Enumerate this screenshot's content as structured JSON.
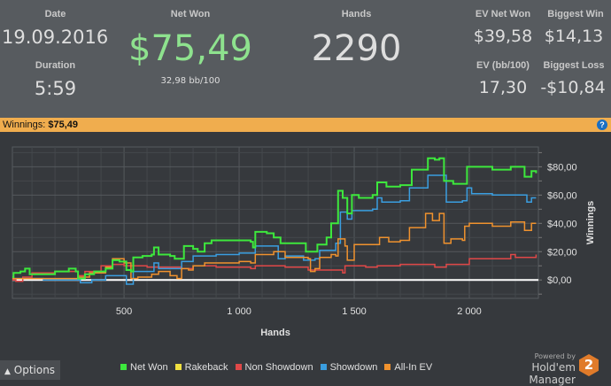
{
  "stats": {
    "date_label": "Date",
    "date": "19.09.2016",
    "duration_label": "Duration",
    "duration": "5:59",
    "net_won_label": "Net Won",
    "net_won": "$75,49",
    "bb100": "32,98 bb/100",
    "hands_label": "Hands",
    "hands": "2290",
    "ev_net_won_label": "EV Net Won",
    "ev_net_won": "$39,58",
    "biggest_win_label": "Biggest Win",
    "biggest_win": "$14,13",
    "ev_bb_label": "EV (bb/100)",
    "ev_bb": "17,30",
    "biggest_loss_label": "Biggest Loss",
    "biggest_loss": "-$10,84"
  },
  "bar": {
    "text": "Winnings: ",
    "value": "$75,49",
    "help": "?"
  },
  "footer": {
    "options": "Options",
    "powered": "Powered by",
    "brand": "Hold'em Manager",
    "logo": "2"
  },
  "colors": {
    "net_won": "#3de83d",
    "rakeback": "#f0e040",
    "non_showdown": "#e04848",
    "showdown": "#3a9ee0",
    "allin_ev": "#f0922e",
    "accent": "#f0ad4e"
  },
  "chart_data": {
    "type": "line",
    "xlabel": "Hands",
    "ylabel": "Winnings",
    "xlim": [
      15,
      2300
    ],
    "ylim": [
      -13,
      94
    ],
    "xticks": [
      {
        "v": 500,
        "label": "500"
      },
      {
        "v": 1000,
        "label": "1 000"
      },
      {
        "v": 1500,
        "label": "1 500"
      },
      {
        "v": 2000,
        "label": "2 000"
      }
    ],
    "yticks": [
      {
        "v": 0,
        "label": "$0,00"
      },
      {
        "v": 20,
        "label": "$20,00"
      },
      {
        "v": 40,
        "label": "$40,00"
      },
      {
        "v": 60,
        "label": "$60,00"
      },
      {
        "v": 80,
        "label": "$80,00"
      }
    ],
    "grid": true,
    "legend": "bottom",
    "series": [
      {
        "name": "Net Won",
        "color": "#3de83d",
        "points": [
          [
            15,
            2
          ],
          [
            20,
            5
          ],
          [
            50,
            6
          ],
          [
            70,
            8
          ],
          [
            90,
            4
          ],
          [
            130,
            4
          ],
          [
            200,
            6
          ],
          [
            260,
            8
          ],
          [
            290,
            6
          ],
          [
            300,
            1
          ],
          [
            330,
            4
          ],
          [
            370,
            6
          ],
          [
            420,
            8
          ],
          [
            450,
            14
          ],
          [
            480,
            13
          ],
          [
            510,
            7
          ],
          [
            530,
            6
          ],
          [
            540,
            16
          ],
          [
            580,
            17
          ],
          [
            620,
            18
          ],
          [
            630,
            23
          ],
          [
            650,
            18
          ],
          [
            700,
            17
          ],
          [
            720,
            15
          ],
          [
            750,
            15
          ],
          [
            760,
            24
          ],
          [
            800,
            22
          ],
          [
            820,
            20
          ],
          [
            850,
            26
          ],
          [
            880,
            28
          ],
          [
            1000,
            28
          ],
          [
            1050,
            27
          ],
          [
            1060,
            23
          ],
          [
            1070,
            34
          ],
          [
            1120,
            33
          ],
          [
            1150,
            30
          ],
          [
            1180,
            26
          ],
          [
            1240,
            26
          ],
          [
            1290,
            20
          ],
          [
            1330,
            20
          ],
          [
            1340,
            25
          ],
          [
            1380,
            30
          ],
          [
            1400,
            40
          ],
          [
            1420,
            40
          ],
          [
            1430,
            63
          ],
          [
            1450,
            58
          ],
          [
            1470,
            47
          ],
          [
            1490,
            60
          ],
          [
            1520,
            58
          ],
          [
            1580,
            60
          ],
          [
            1600,
            69
          ],
          [
            1640,
            66
          ],
          [
            1700,
            67
          ],
          [
            1750,
            78
          ],
          [
            1810,
            78
          ],
          [
            1820,
            86
          ],
          [
            1850,
            85
          ],
          [
            1870,
            86
          ],
          [
            1890,
            70
          ],
          [
            1930,
            68
          ],
          [
            1990,
            80
          ],
          [
            2100,
            78
          ],
          [
            2180,
            80
          ],
          [
            2240,
            73
          ],
          [
            2270,
            77
          ],
          [
            2290,
            75.5
          ]
        ]
      },
      {
        "name": "Rakeback",
        "color": "#f0e040",
        "points": []
      },
      {
        "name": "Non Showdown",
        "color": "#e04848",
        "points": [
          [
            15,
            0
          ],
          [
            30,
            -1
          ],
          [
            60,
            2
          ],
          [
            100,
            5
          ],
          [
            200,
            6
          ],
          [
            300,
            3
          ],
          [
            330,
            6
          ],
          [
            400,
            10
          ],
          [
            450,
            11
          ],
          [
            500,
            10
          ],
          [
            600,
            9
          ],
          [
            700,
            9
          ],
          [
            750,
            8
          ],
          [
            800,
            10
          ],
          [
            900,
            9
          ],
          [
            1000,
            9
          ],
          [
            1050,
            8
          ],
          [
            1070,
            10
          ],
          [
            1200,
            9
          ],
          [
            1300,
            7
          ],
          [
            1400,
            7
          ],
          [
            1450,
            5
          ],
          [
            1460,
            10
          ],
          [
            1500,
            10
          ],
          [
            1550,
            9
          ],
          [
            1600,
            10
          ],
          [
            1700,
            11
          ],
          [
            1800,
            11
          ],
          [
            1850,
            9
          ],
          [
            1900,
            11
          ],
          [
            2000,
            15
          ],
          [
            2100,
            15
          ],
          [
            2180,
            18
          ],
          [
            2200,
            16
          ],
          [
            2250,
            16
          ],
          [
            2290,
            18
          ]
        ]
      },
      {
        "name": "Showdown",
        "color": "#3a9ee0",
        "points": [
          [
            15,
            1
          ],
          [
            80,
            1
          ],
          [
            150,
            0
          ],
          [
            300,
            0
          ],
          [
            310,
            -2
          ],
          [
            350,
            -2
          ],
          [
            360,
            0
          ],
          [
            400,
            0
          ],
          [
            420,
            3
          ],
          [
            500,
            3
          ],
          [
            510,
            -3
          ],
          [
            530,
            -3
          ],
          [
            540,
            6
          ],
          [
            620,
            6
          ],
          [
            630,
            12
          ],
          [
            650,
            8
          ],
          [
            700,
            8
          ],
          [
            750,
            13
          ],
          [
            800,
            17
          ],
          [
            900,
            18
          ],
          [
            1000,
            19
          ],
          [
            1070,
            24
          ],
          [
            1150,
            24
          ],
          [
            1170,
            15
          ],
          [
            1200,
            17
          ],
          [
            1280,
            14
          ],
          [
            1330,
            15
          ],
          [
            1350,
            21
          ],
          [
            1420,
            26
          ],
          [
            1440,
            48
          ],
          [
            1470,
            43
          ],
          [
            1490,
            49
          ],
          [
            1580,
            50
          ],
          [
            1600,
            58
          ],
          [
            1620,
            55
          ],
          [
            1700,
            56
          ],
          [
            1740,
            65
          ],
          [
            1800,
            65
          ],
          [
            1820,
            74
          ],
          [
            1880,
            74
          ],
          [
            1900,
            55
          ],
          [
            1970,
            56
          ],
          [
            1990,
            65
          ],
          [
            2010,
            61
          ],
          [
            2100,
            60
          ],
          [
            2240,
            60
          ],
          [
            2250,
            55
          ],
          [
            2270,
            58
          ],
          [
            2290,
            58
          ]
        ]
      },
      {
        "name": "All-In EV",
        "color": "#f0922e",
        "points": [
          [
            15,
            1
          ],
          [
            300,
            2
          ],
          [
            350,
            5
          ],
          [
            420,
            9
          ],
          [
            450,
            15
          ],
          [
            500,
            12
          ],
          [
            530,
            1
          ],
          [
            560,
            2
          ],
          [
            620,
            4
          ],
          [
            650,
            6
          ],
          [
            700,
            3
          ],
          [
            730,
            1
          ],
          [
            750,
            8
          ],
          [
            780,
            7
          ],
          [
            800,
            10
          ],
          [
            850,
            12
          ],
          [
            1000,
            13
          ],
          [
            1050,
            12
          ],
          [
            1070,
            18
          ],
          [
            1150,
            20
          ],
          [
            1200,
            16
          ],
          [
            1300,
            15
          ],
          [
            1310,
            6
          ],
          [
            1330,
            8
          ],
          [
            1350,
            16
          ],
          [
            1400,
            18
          ],
          [
            1420,
            17
          ],
          [
            1430,
            29
          ],
          [
            1460,
            24
          ],
          [
            1470,
            14
          ],
          [
            1500,
            25
          ],
          [
            1600,
            25
          ],
          [
            1610,
            30
          ],
          [
            1650,
            27
          ],
          [
            1700,
            28
          ],
          [
            1740,
            37
          ],
          [
            1800,
            37
          ],
          [
            1810,
            47
          ],
          [
            1840,
            42
          ],
          [
            1870,
            47
          ],
          [
            1890,
            26
          ],
          [
            1920,
            29
          ],
          [
            1970,
            28
          ],
          [
            1980,
            38
          ],
          [
            2000,
            40
          ],
          [
            2100,
            38
          ],
          [
            2180,
            41
          ],
          [
            2240,
            35
          ],
          [
            2270,
            40
          ],
          [
            2290,
            40
          ]
        ]
      }
    ]
  }
}
